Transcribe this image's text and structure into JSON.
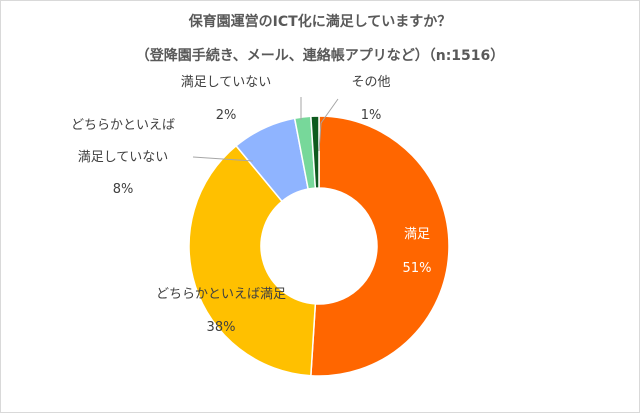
{
  "chart_data": {
    "type": "pie",
    "style": "donut",
    "title": "保育園運営のICT化に満足していますか？",
    "subtitle": "（登降園手続き、メール、連絡帳アプリなど）（n:1516）",
    "slices": [
      {
        "label": "満足",
        "value": 51,
        "value_label": "51%",
        "color": "#FF6600"
      },
      {
        "label": "どちらかといえば満足",
        "value": 38,
        "value_label": "38%",
        "color": "#FFC000"
      },
      {
        "label_lines": [
          "どちらかといえば",
          "満足していない"
        ],
        "value": 8,
        "value_label": "8%",
        "color": "#8FB4FF"
      },
      {
        "label": "満足していない",
        "value": 2,
        "value_label": "2%",
        "color": "#77D89A"
      },
      {
        "label": "その他",
        "value": 1,
        "value_label": "1%",
        "color": "#0E5A1E"
      }
    ]
  }
}
